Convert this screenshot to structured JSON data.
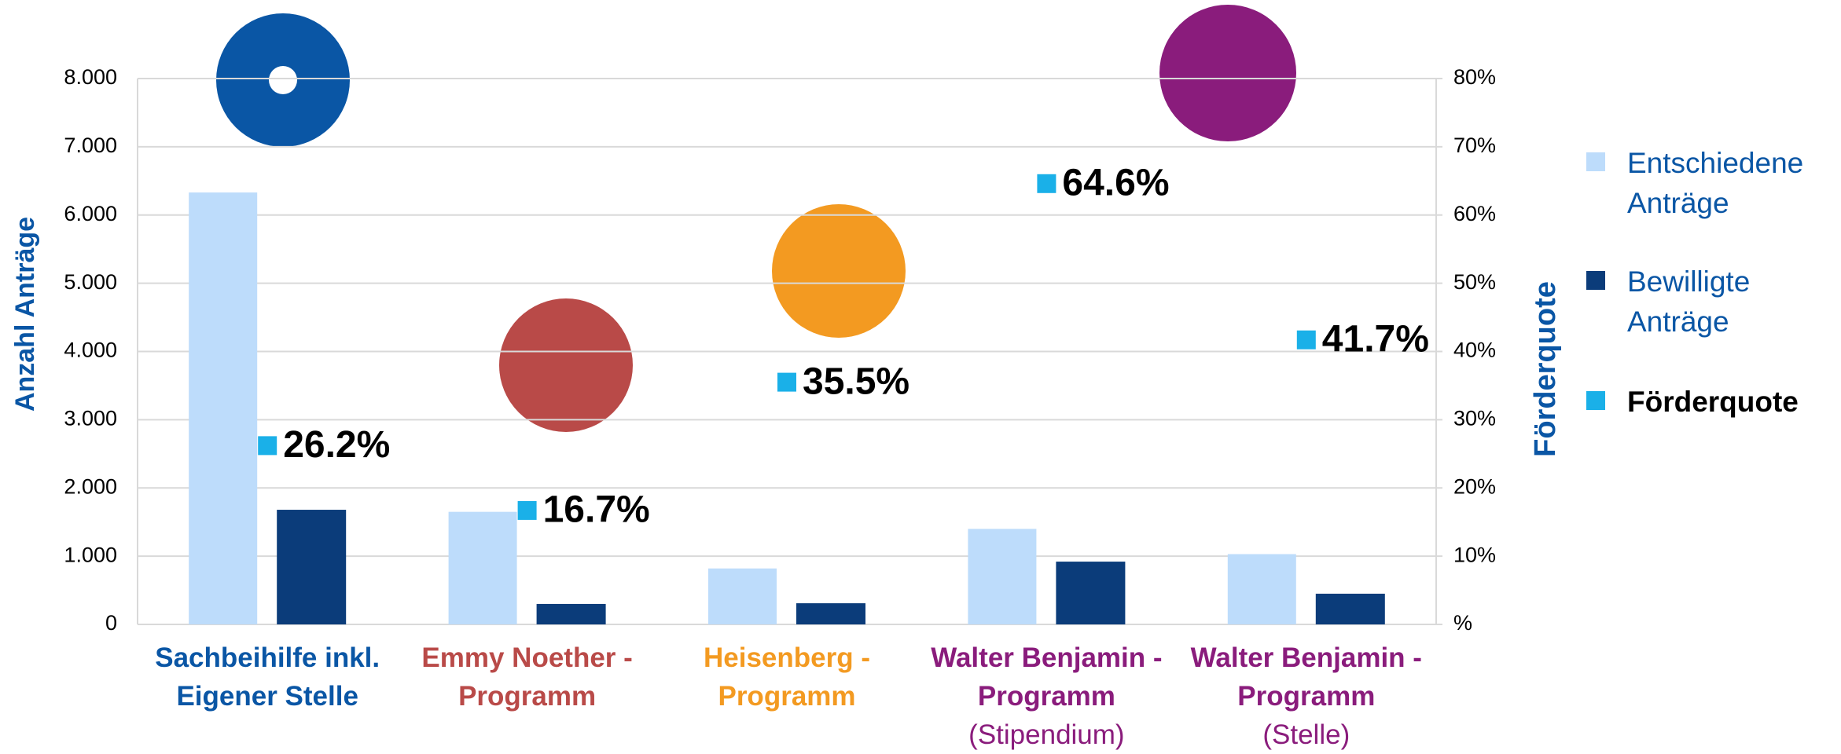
{
  "chart_data": {
    "type": "bar",
    "categories": [
      "Sachbeihilfe inkl. Eigener Stelle",
      "Emmy Noether - Programm",
      "Heisenberg - Programm",
      "Walter Benjamin - Programm",
      "Walter Benjamin - Programm"
    ],
    "category_notes": [
      null,
      null,
      null,
      "(Stipendium)",
      "(Stelle)"
    ],
    "category_colors": [
      "#0a56a5",
      "#b94a48",
      "#f39a21",
      "#8a1c7c",
      "#8a1c7c"
    ],
    "y_label": "Anzahl Anträge",
    "y2_label": "Förderquote",
    "ylim": [
      0,
      8000
    ],
    "yticks": [
      {
        "value": 0,
        "label": "0"
      },
      {
        "value": 1000,
        "label": "1.000"
      },
      {
        "value": 2000,
        "label": "2.000"
      },
      {
        "value": 3000,
        "label": "3.000"
      },
      {
        "value": 4000,
        "label": "4.000"
      },
      {
        "value": 5000,
        "label": "5.000"
      },
      {
        "value": 6000,
        "label": "6.000"
      },
      {
        "value": 7000,
        "label": "7.000"
      },
      {
        "value": 8000,
        "label": "8.000"
      }
    ],
    "y2lim": [
      0,
      80
    ],
    "y2ticks": [
      {
        "value": 0,
        "label": "%"
      },
      {
        "value": 10,
        "label": "10%"
      },
      {
        "value": 20,
        "label": "20%"
      },
      {
        "value": 30,
        "label": "30%"
      },
      {
        "value": 40,
        "label": "40%"
      },
      {
        "value": 50,
        "label": "50%"
      },
      {
        "value": 60,
        "label": "60%"
      },
      {
        "value": 70,
        "label": "70%"
      },
      {
        "value": 80,
        "label": "80%"
      }
    ],
    "grid": true,
    "series": [
      {
        "name": "Entschiedene Anträge",
        "color": "#bddcfb",
        "values": [
          6330,
          1650,
          820,
          1400,
          1030
        ]
      },
      {
        "name": "Bewilligte Anträge",
        "color": "#0b3c7a",
        "values": [
          1680,
          300,
          310,
          920,
          450
        ]
      },
      {
        "name": "Förderquote",
        "color": "#1ab0e8",
        "axis": "y2",
        "values": [
          26.2,
          16.7,
          35.5,
          64.6,
          41.7
        ],
        "value_labels": [
          "26.2%",
          "16.7%",
          "35.5%",
          "64.6%",
          "41.7%"
        ]
      }
    ]
  }
}
